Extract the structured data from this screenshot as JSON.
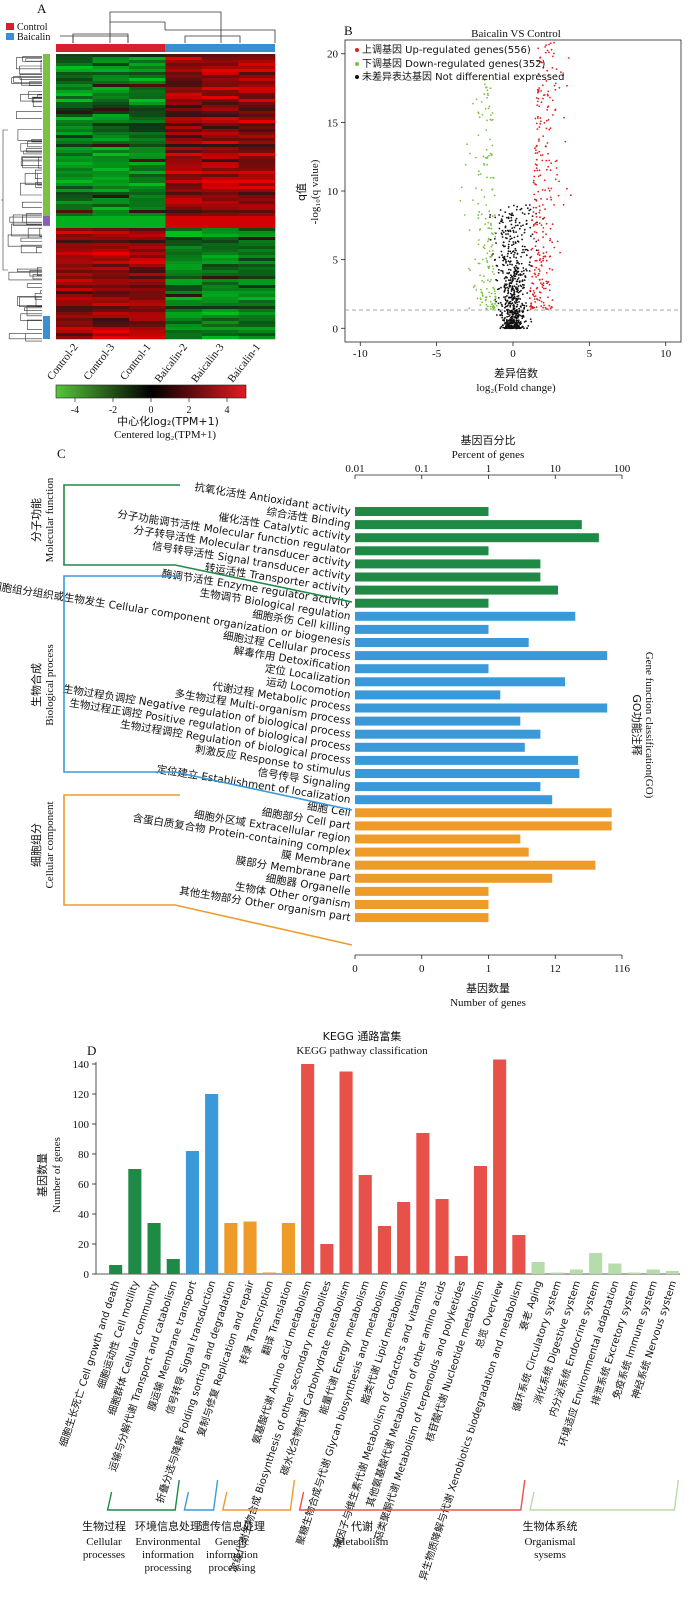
{
  "colors": {
    "control": "#d62030",
    "baicalin": "#3a8fd0",
    "up": "#e02020",
    "down": "#7cc242",
    "ns": "#111111",
    "mf": "#1f8a45",
    "bp": "#3a9ad9",
    "cc": "#ee9b2a",
    "kegg_cellular": "#1f8a45",
    "kegg_env": "#3a9ad9",
    "kegg_genetic": "#ee9b2a",
    "kegg_metabolism": "#e8504a",
    "kegg_organismal": "#b5dcaa",
    "heat_low": "#56c63a",
    "heat_mid": "#000000",
    "heat_high": "#e21a22"
  },
  "panelA": {
    "label": "A",
    "legend": [
      "Control",
      "Baicalin"
    ],
    "samples": [
      "Control-2",
      "Control-3",
      "Control-1",
      "Baicalin-2",
      "Baicalin-3",
      "Baicalin-1"
    ],
    "colorbar_ticks": [
      "-4",
      "-2",
      "0",
      "2",
      "4"
    ],
    "colorbar_zh": "中心化log₂(TPM+1)",
    "colorbar_en": "Centered log₂(TPM+1)"
  },
  "panelB": {
    "label": "B",
    "title": "Baicalin VS Control",
    "legend": [
      "上调基因 Up-regulated genes(556)",
      "下调基因 Down-regulated genes(352)",
      "未差异表达基因 Not differential expressed"
    ],
    "y_zh": "q值",
    "y_en": "-log₁₀(q value)",
    "x_zh": "差异倍数",
    "x_en": "log₂(Fold change)",
    "xticks": [
      "-10",
      "-5",
      "0",
      "5",
      "10"
    ],
    "yticks": [
      "0",
      "5",
      "10",
      "15",
      "20"
    ]
  },
  "panelC": {
    "label": "C",
    "top_zh": "基因百分比",
    "top_en": "Percent of genes",
    "top_ticks": [
      "0.01",
      "0.1",
      "1",
      "10",
      "100"
    ],
    "bottom_ticks": [
      "0",
      "0",
      "1",
      "12",
      "116"
    ],
    "bottom_zh": "基因数量",
    "bottom_en": "Number of genes",
    "right_zh": "GO功能注释",
    "right_en": "Gene function classification(GO)",
    "group_labels": [
      {
        "zh": "分子功能",
        "en": "Molecular function"
      },
      {
        "zh": "生物合成",
        "en": "Biological process"
      },
      {
        "zh": "细胞组分",
        "en": "Cellular component"
      }
    ]
  },
  "panelD": {
    "label": "D",
    "title_zh": "KEGG 通路富集",
    "title_en": "KEGG pathway classification",
    "y_zh": "基因数量",
    "y_en": "Number of genes",
    "yticks": [
      "0",
      "20",
      "40",
      "60",
      "80",
      "100",
      "120",
      "140"
    ],
    "groups": [
      {
        "zh": "生物过程",
        "en": [
          "Cellular",
          "processes"
        ]
      },
      {
        "zh": "环境信息处理",
        "en": [
          "Environmental",
          "information",
          "processing"
        ]
      },
      {
        "zh": "遗传信息处理",
        "en": [
          "Genetic",
          "information",
          "processing"
        ]
      },
      {
        "zh": "代谢",
        "en": [
          "Metabolism"
        ]
      },
      {
        "zh": "生物体系统",
        "en": [
          "Organismal",
          "sysems"
        ]
      }
    ]
  },
  "chart_data": [
    {
      "type": "heatmap",
      "title": "",
      "x": [
        "Control-2",
        "Control-3",
        "Control-1",
        "Baicalin-2",
        "Baicalin-3",
        "Baicalin-1"
      ],
      "colorbar_range": [
        -5,
        5
      ],
      "note": "Hierarchically clustered gene expression; upper block higher in Baicalin, lower block higher in Control"
    },
    {
      "type": "scatter",
      "title": "Baicalin VS Control",
      "xlabel": "log₂(Fold change)",
      "ylabel": "-log₁₀(q value)",
      "xlim": [
        -11,
        11
      ],
      "ylim": [
        -1,
        21
      ],
      "threshold_y": 1.3,
      "series": [
        {
          "name": "Up-regulated genes",
          "count": 556
        },
        {
          "name": "Down-regulated genes",
          "count": 352
        },
        {
          "name": "Not differential expressed"
        }
      ]
    },
    {
      "type": "bar",
      "orientation": "horizontal",
      "title": "Gene function classification(GO)",
      "xlabel": "Number of genes",
      "x_top_label": "Percent of genes",
      "x_scale": "log",
      "categories": [
        "抗氧化活性 Antioxidant activity",
        "综合活性 Binding",
        "催化活性 Catalytic activity",
        "分子功能调节活性 Molecular function regulator",
        "分子转导活性 Molecular transducer activity",
        "信号转导活性 Signal transducer activity",
        "转运活性 Transporter activity",
        "酶调节活性 Enzyme regulator activity",
        "生物调节 Biological regulation",
        "细胞杀伤 Cell killing",
        "细胞组分组织或生物发生 Cellular component organization or biogenesis",
        "细胞过程 Cellular process",
        "解毒作用 Detoxification",
        "定位 Localization",
        "运动 Locomotion",
        "代谢过程 Metabolic process",
        "多生物过程 Multi-organism process",
        "生物过程负调控 Negative regulation of biological process",
        "生物过程正调控 Positive regulation of biological process",
        "生物过程调控 Regulation of biological process",
        "刺激反应 Response to stimulus",
        "信号传导 Signaling",
        "定位建立 Establishment of localization",
        "细胞 Cell",
        "细胞部分 Cell part",
        "细胞外区域 Extracellular region",
        "含蛋白质复合物 Protein-containing complex",
        "膜 Membrane",
        "膜部分 Membrane part",
        "细胞器 Organelle",
        "生物体 Other organism",
        "其他生物部分 Other organism part"
      ],
      "group": [
        "mf",
        "mf",
        "mf",
        "mf",
        "mf",
        "mf",
        "mf",
        "mf",
        "bp",
        "bp",
        "bp",
        "bp",
        "bp",
        "bp",
        "bp",
        "bp",
        "bp",
        "bp",
        "bp",
        "bp",
        "bp",
        "bp",
        "bp",
        "cc",
        "cc",
        "cc",
        "cc",
        "cc",
        "cc",
        "cc",
        "cc",
        "cc"
      ],
      "percent": [
        1,
        25,
        45,
        1,
        6,
        6,
        11,
        1,
        20,
        1,
        4,
        60,
        1,
        14,
        1.5,
        60,
        3,
        6,
        3.5,
        22,
        23,
        6,
        9,
        70,
        70,
        3,
        4,
        40,
        9,
        1,
        1,
        1
      ]
    },
    {
      "type": "bar",
      "title": "KEGG pathway classification",
      "ylabel": "Number of genes",
      "ylim": [
        0,
        140
      ],
      "categories": [
        "细胞生长死亡 Cell growth and death",
        "细胞运动性 Cell motility",
        "细胞群体 Cellular community",
        "运输与分解代谢 Transport and catabolism",
        "膜运输 Membrane transport",
        "信号转导 Signal transduction",
        "折叠分选与降解 Folding sorting and degradation",
        "复制与修复 Replication and repair",
        "转录 Transcription",
        "翻译 Translation",
        "氨基酸代谢 Amino acid metabolism",
        "次级代谢生物合成 Biosynthesis of other secondary metabolites",
        "碳水化合物代谢 Carbohydrate metabolism",
        "能量代谢 Energy metabolism",
        "聚糖生物合成与代谢 Glycan biosynthesis and metabolism",
        "脂类代谢 Lipid metabolism",
        "辅因子与维生素代谢 Metabolism of cofactors and vitamins",
        "其他氨基酸代谢 Metabolism of other amino acids",
        "萜类聚酮代谢 Metabolism of terpenoids and polyketides",
        "核苷酸代谢 Nucleotide metabolism",
        "总览 Overview",
        "异生物质降解与代谢 Xenobiotics biodegradation and metabolism",
        "衰老 Aging",
        "循环系统 Circulatory system",
        "消化系统 Digestive system",
        "内分泌系统 Endocrine system",
        "环境适应 Environmental adaptation",
        "排泄系统 Excretory system",
        "免疫系统 Immune system",
        "神经系统 Nervous system"
      ],
      "group": [
        0,
        0,
        0,
        0,
        1,
        1,
        2,
        2,
        2,
        2,
        3,
        3,
        3,
        3,
        3,
        3,
        3,
        3,
        3,
        3,
        3,
        3,
        4,
        4,
        4,
        4,
        4,
        4,
        4,
        4
      ],
      "values": [
        6,
        70,
        34,
        10,
        82,
        120,
        34,
        35,
        1,
        34,
        140,
        20,
        135,
        66,
        32,
        48,
        94,
        50,
        12,
        72,
        143,
        26,
        8,
        1,
        3,
        14,
        7,
        1,
        3,
        2
      ]
    }
  ]
}
